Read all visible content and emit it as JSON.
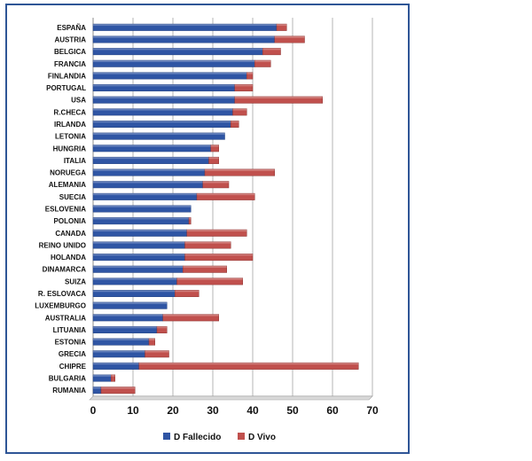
{
  "chart_data": {
    "type": "bar",
    "orientation": "horizontal",
    "stacked": true,
    "categories": [
      "ESPAÑA",
      "AUSTRIA",
      "BELGICA",
      "FRANCIA",
      "FINLANDIA",
      "PORTUGAL",
      "USA",
      "R.CHECA",
      "IRLANDA",
      "LETONIA",
      "HUNGRIA",
      "ITALIA",
      "NORUEGA",
      "ALEMANIA",
      "SUECIA",
      "ESLOVENIA",
      "POLONIA",
      "CANADA",
      "REINO UNIDO",
      "HOLANDA",
      "DINAMARCA",
      "SUIZA",
      "R. ESLOVACA",
      "LUXEMBURGO",
      "AUSTRALIA",
      "LITUANIA",
      "ESTONIA",
      "GRECIA",
      "CHIPRE",
      "BULGARIA",
      "RUMANIA"
    ],
    "series": [
      {
        "name": "D Fallecido",
        "color": "#2f55a4",
        "values": [
          46,
          45.5,
          42.5,
          40.5,
          38.5,
          35.5,
          35.5,
          35,
          34.5,
          33,
          29.5,
          29,
          28,
          27.5,
          26,
          24.5,
          24,
          23.5,
          23,
          23,
          22.5,
          21,
          20.5,
          18.5,
          17.5,
          16,
          14,
          13,
          11.5,
          4.5,
          2
        ]
      },
      {
        "name": "D Vivo",
        "color": "#c0504d",
        "values": [
          2.5,
          7.5,
          4.5,
          4,
          1.5,
          4.5,
          22,
          3.5,
          2,
          0,
          2,
          2.5,
          17.5,
          6.5,
          14.5,
          0,
          0.5,
          15,
          11.5,
          17,
          11,
          16.5,
          6,
          0,
          14,
          2.5,
          1.5,
          6,
          55,
          1,
          8.5
        ]
      }
    ],
    "xlim": [
      0,
      70
    ],
    "xticks": [
      0,
      10,
      20,
      30,
      40,
      50,
      60,
      70
    ],
    "title": "",
    "xlabel": "",
    "ylabel": "",
    "grid": true,
    "legend_position": "bottom"
  }
}
